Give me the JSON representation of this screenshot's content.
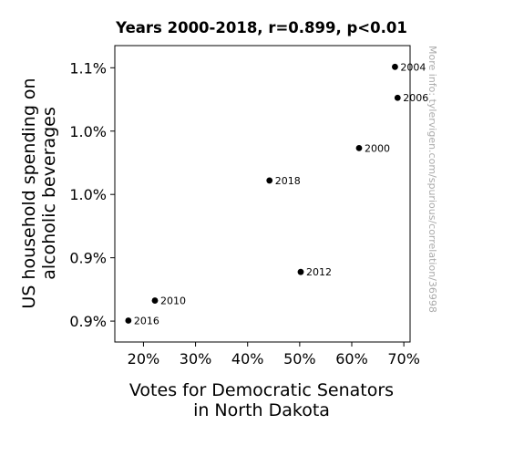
{
  "chart_data": {
    "type": "scatter",
    "title": "Years 2000-2018, r=0.899, p<0.01",
    "xlabel_lines": [
      "Votes for Democratic Senators",
      "in North Dakota"
    ],
    "ylabel_lines": [
      "US household spending on",
      "alcoholic beverages"
    ],
    "watermark": "More info: tylervigen.com/spurious/correlation/36998",
    "x_ticks": [
      {
        "value": 20,
        "label": "20%"
      },
      {
        "value": 30,
        "label": "30%"
      },
      {
        "value": 40,
        "label": "40%"
      },
      {
        "value": 50,
        "label": "50%"
      },
      {
        "value": 60,
        "label": "60%"
      },
      {
        "value": 70,
        "label": "70%"
      }
    ],
    "y_ticks": [
      {
        "value": 0.8875,
        "label": "0.9%"
      },
      {
        "value": 0.9375,
        "label": "0.9%"
      },
      {
        "value": 0.9875,
        "label": "1.0%"
      },
      {
        "value": 1.0375,
        "label": "1.0%"
      },
      {
        "value": 1.0875,
        "label": "1.1%"
      }
    ],
    "xlim": [
      14.5,
      71.2
    ],
    "ylim": [
      0.871,
      1.105
    ],
    "grid": false,
    "marker_color": "#000000",
    "points": [
      {
        "label": "2016",
        "x": 17.1,
        "y": 0.8879
      },
      {
        "label": "2010",
        "x": 22.2,
        "y": 0.9037
      },
      {
        "label": "2018",
        "x": 44.2,
        "y": 0.9985
      },
      {
        "label": "2012",
        "x": 50.2,
        "y": 0.9263
      },
      {
        "label": "2000",
        "x": 61.4,
        "y": 1.0241
      },
      {
        "label": "2004",
        "x": 68.3,
        "y": 1.0882
      },
      {
        "label": "2006",
        "x": 68.8,
        "y": 1.0638
      }
    ]
  }
}
